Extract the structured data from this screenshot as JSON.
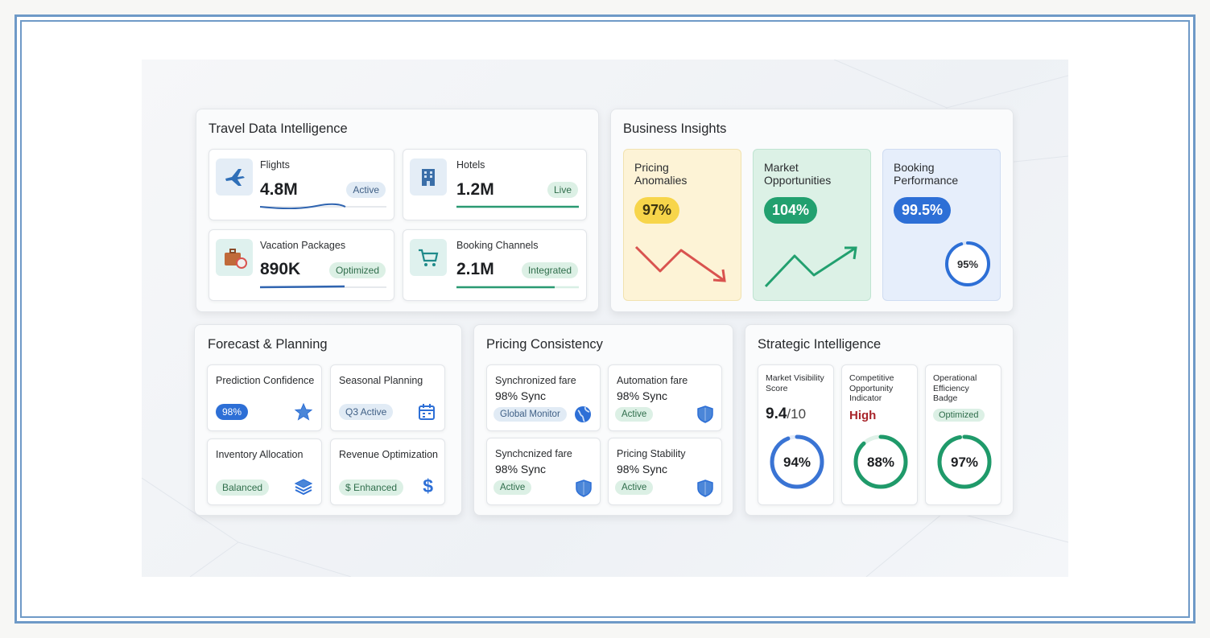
{
  "colors": {
    "accent_blue": "#2d6fd6",
    "green": "#1f9a6a",
    "red": "#d9534f",
    "yellow_bg": "#fdf3d3",
    "green_bg": "#dcf1e6",
    "blue_bg": "#e6eefb"
  },
  "travel": {
    "title": "Travel Data Intelligence",
    "items": [
      {
        "label": "Flights",
        "value": "4.8M",
        "badge": "Active",
        "icon": "airplane-icon"
      },
      {
        "label": "Hotels",
        "value": "1.2M",
        "badge": "Live",
        "icon": "hotel-building-icon"
      },
      {
        "label": "Vacation Packages",
        "value": "890K",
        "badge": "Optimized",
        "icon": "luggage-icon"
      },
      {
        "label": "Booking Channels",
        "value": "2.1M",
        "badge": "Integrated",
        "icon": "shopping-cart-icon"
      }
    ]
  },
  "business": {
    "title": "Business Insights",
    "cards": [
      {
        "title": "Pricing\nAnomalies",
        "value": "97%",
        "trend": "down"
      },
      {
        "title": "Market\nOpportunities",
        "value": "104%",
        "trend": "up"
      },
      {
        "title": "Booking\nPerformance",
        "value": "99.5%",
        "ring_label": "95%",
        "ring_fraction": 0.95
      }
    ]
  },
  "forecast": {
    "title": "Forecast & Planning",
    "cards": [
      {
        "title": "Prediction Confidence",
        "badge": "98%",
        "icon": "star-icon"
      },
      {
        "title": "Seasonal Planning",
        "badge": "Q3 Active",
        "icon": "calendar-icon"
      },
      {
        "title": "Inventory Allocation",
        "badge": "Balanced",
        "icon": "layers-icon"
      },
      {
        "title": "Revenue Optimization",
        "badge": "$ Enhanced",
        "icon": "dollar-icon"
      }
    ]
  },
  "pricing": {
    "title": "Pricing Consistency",
    "cards": [
      {
        "title": "Synchronized fare",
        "value": "98% Sync",
        "badge": "Global Monitor",
        "icon": "globe-icon"
      },
      {
        "title": "Automation fare",
        "value": "98% Sync",
        "badge": "Active",
        "icon": "shield-icon"
      },
      {
        "title": "Synchcnized fare",
        "value": "98% Sync",
        "badge": "Active",
        "icon": "shield-icon"
      },
      {
        "title": "Pricing Stability",
        "value": "98% Sync",
        "badge": "Active",
        "icon": "shield-icon"
      }
    ]
  },
  "strategic": {
    "title": "Strategic Intelligence",
    "cards": [
      {
        "title": "Market Visibility\nScore",
        "score": "9.4",
        "score_suffix": "/10",
        "ring_label": "94%",
        "ring_fraction": 0.94
      },
      {
        "title": "Competitive\nOpportunity\nIndicator",
        "level": "High",
        "ring_label": "88%",
        "ring_fraction": 0.88
      },
      {
        "title": "Operational\nEfficiency\nBadge",
        "badge": "Optimized",
        "ring_label": "97%",
        "ring_fraction": 0.97
      }
    ]
  }
}
